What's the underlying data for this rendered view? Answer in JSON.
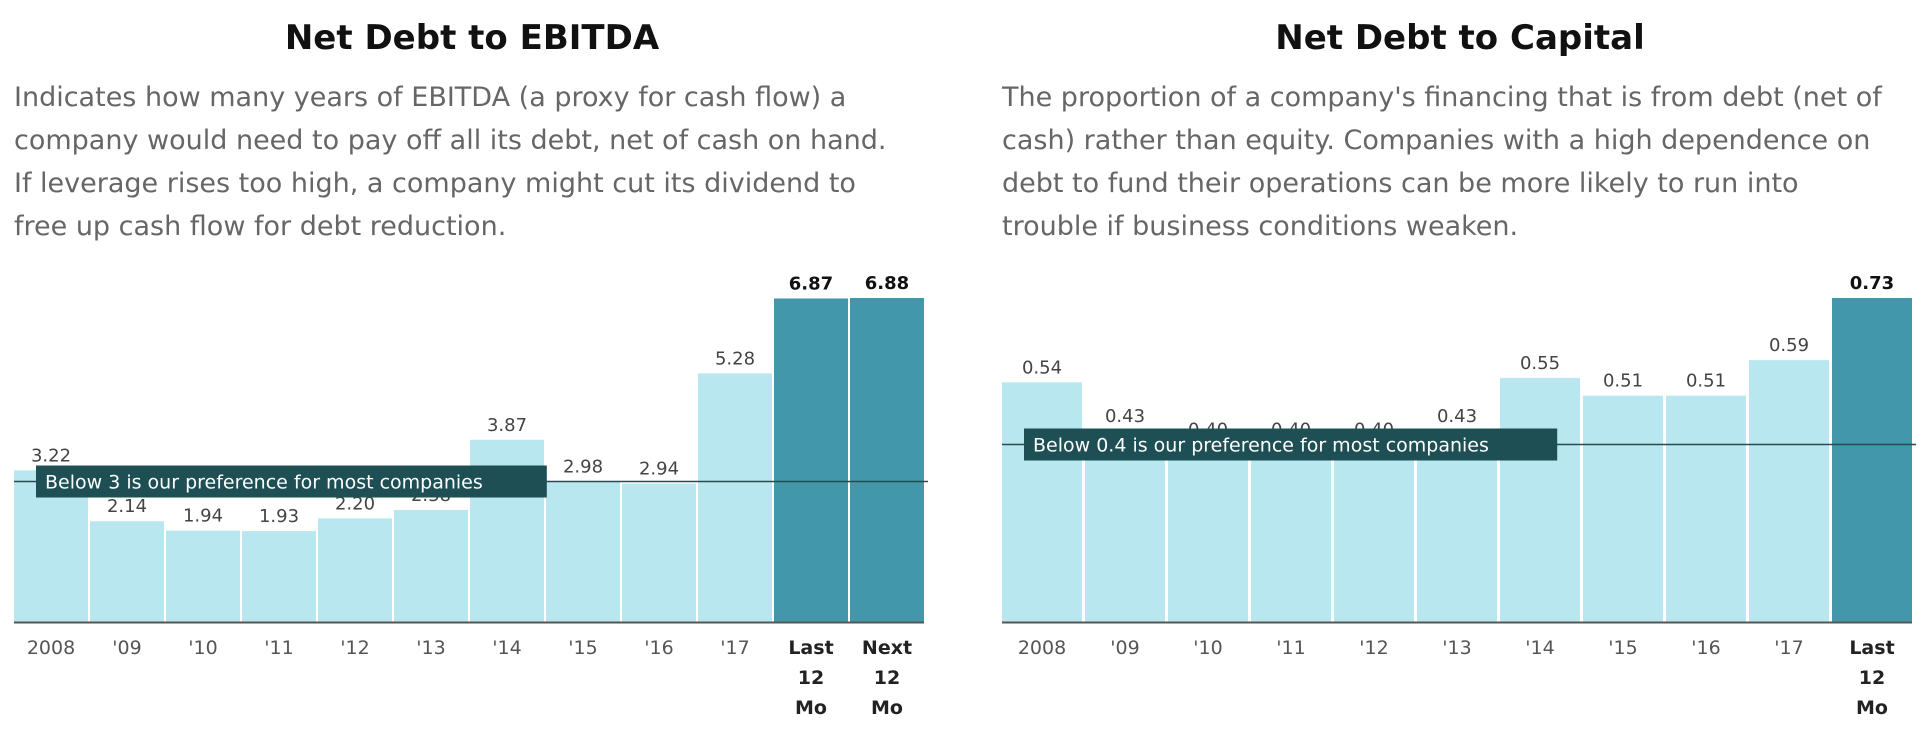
{
  "colors": {
    "bar_light": "#b8e7ef",
    "bar_dark": "#4298aa",
    "ref_box": "#1e4f55",
    "ref_line": "#2b4a50",
    "axis": "#555555"
  },
  "charts": [
    {
      "title": "Net Debt to EBITDA",
      "description": [
        "Indicates how many years of EBITDA (a proxy for cash flow) a",
        "company would need to pay off all its debt, net of cash on hand.",
        "If leverage rises too high, a company might cut its dividend to",
        "free up cash flow for debt reduction."
      ],
      "reference_label": "Below 3 is our preference for most companies"
    },
    {
      "title": "Net Debt to Capital",
      "description": [
        "The proportion of a company's financing that is from debt (net of",
        "cash) rather than equity. Companies with a high dependence on",
        "debt to fund their operations can be more likely to run into",
        "trouble if business conditions weaken."
      ],
      "reference_label": "Below 0.4 is our preference for most companies"
    }
  ],
  "chart_data": [
    {
      "type": "bar",
      "title": "Net Debt to EBITDA",
      "categories": [
        "2008",
        "'09",
        "'10",
        "'11",
        "'12",
        "'13",
        "'14",
        "'15",
        "'16",
        "'17",
        "Last 12 Mo",
        "Next 12 Mo"
      ],
      "category_lines": [
        [
          "2008"
        ],
        [
          "'09"
        ],
        [
          "'10"
        ],
        [
          "'11"
        ],
        [
          "'12"
        ],
        [
          "'13"
        ],
        [
          "'14"
        ],
        [
          "'15"
        ],
        [
          "'16"
        ],
        [
          "'17"
        ],
        [
          "Last",
          "12",
          "Mo"
        ],
        [
          "Next",
          "12",
          "Mo"
        ]
      ],
      "values": [
        3.22,
        2.14,
        1.94,
        1.93,
        2.2,
        2.38,
        3.87,
        2.98,
        2.94,
        5.28,
        6.87,
        6.88
      ],
      "value_labels": [
        "3.22",
        "2.14",
        "1.94",
        "1.93",
        "2.20",
        "2.38",
        "3.87",
        "2.98",
        "2.94",
        "5.28",
        "6.87",
        "6.88"
      ],
      "highlight": [
        false,
        false,
        false,
        false,
        false,
        false,
        false,
        false,
        false,
        false,
        true,
        true
      ],
      "reference_value": 3,
      "ylim": [
        0,
        6.88
      ],
      "grid": false,
      "legend": "none"
    },
    {
      "type": "bar",
      "title": "Net Debt to Capital",
      "categories": [
        "2008",
        "'09",
        "'10",
        "'11",
        "'12",
        "'13",
        "'14",
        "'15",
        "'16",
        "'17",
        "Last 12 Mo"
      ],
      "category_lines": [
        [
          "2008"
        ],
        [
          "'09"
        ],
        [
          "'10"
        ],
        [
          "'11"
        ],
        [
          "'12"
        ],
        [
          "'13"
        ],
        [
          "'14"
        ],
        [
          "'15"
        ],
        [
          "'16"
        ],
        [
          "'17"
        ],
        [
          "Last",
          "12",
          "Mo"
        ]
      ],
      "values": [
        0.54,
        0.43,
        0.4,
        0.4,
        0.4,
        0.43,
        0.55,
        0.51,
        0.51,
        0.59,
        0.73
      ],
      "value_labels": [
        "0.54",
        "0.43",
        "0.40",
        "0.40",
        "0.40",
        "0.43",
        "0.55",
        "0.51",
        "0.51",
        "0.59",
        "0.73"
      ],
      "highlight": [
        false,
        false,
        false,
        false,
        false,
        false,
        false,
        false,
        false,
        false,
        true
      ],
      "reference_value": 0.4,
      "ylim": [
        0,
        0.73
      ],
      "grid": false,
      "legend": "none"
    }
  ]
}
